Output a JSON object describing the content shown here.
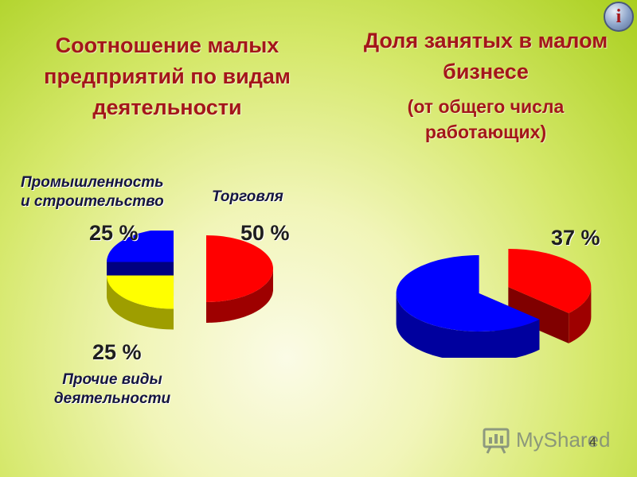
{
  "chart_data": [
    {
      "type": "pie",
      "title": "Соотношение малых предприятий по видам деятельности",
      "slices": [
        {
          "label": "Торговля",
          "value": 50,
          "value_label": "50 %",
          "color": "#ff0000"
        },
        {
          "label": "Промышленность и строительство",
          "value": 25,
          "value_label": "25 %",
          "color": "#ffff00"
        },
        {
          "label": "Прочие виды деятельности",
          "value": 25,
          "value_label": "25 %",
          "color": "#0000ff"
        }
      ],
      "exploded": true,
      "style": "3d"
    },
    {
      "type": "pie",
      "title": "Доля занятых в малом бизнесе",
      "subtitle": "(от общего числа работающих)",
      "slices": [
        {
          "label": "",
          "value": 37,
          "value_label": "37 %",
          "color": "#ff0000"
        },
        {
          "label": "",
          "value": 63,
          "value_label": "",
          "color": "#0000ff"
        }
      ],
      "exploded": true,
      "style": "3d"
    }
  ],
  "labels": {
    "industry_line1": "Промышленность",
    "industry_line2": "и строительство",
    "trade": "Торговля",
    "other_line1": "Прочие виды",
    "other_line2": "деятельности"
  },
  "info_button": {
    "label": "i",
    "icon": "info-icon"
  },
  "watermark": {
    "text": "MyShared",
    "icon": "myshared-logo-icon"
  },
  "slide_number": "4"
}
